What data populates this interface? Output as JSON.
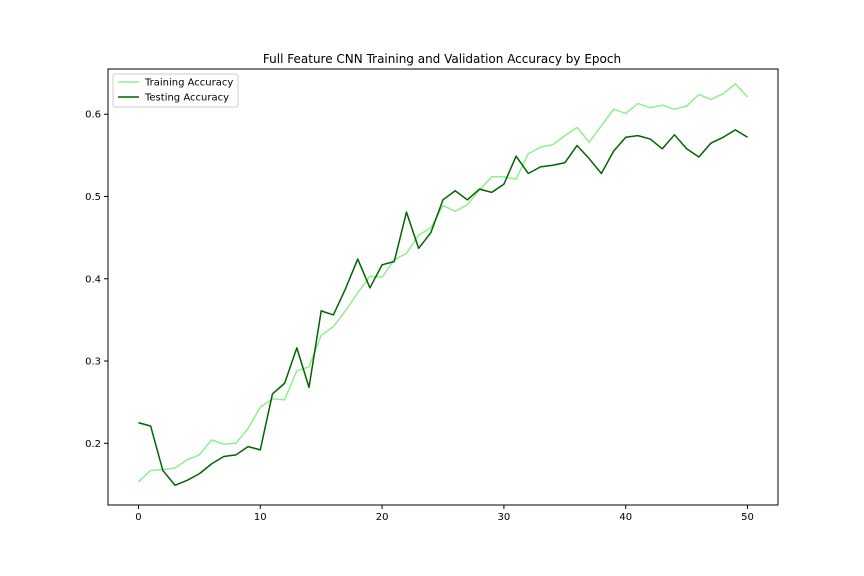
{
  "chart_data": {
    "type": "line",
    "title": "Full Feature CNN Training and Validation Accuracy by Epoch",
    "xlabel": "",
    "ylabel": "",
    "xlim": [
      -2.5,
      52.5
    ],
    "ylim": [
      0.125,
      0.655
    ],
    "xticks": [
      0,
      10,
      20,
      30,
      40,
      50
    ],
    "yticks": [
      0.2,
      0.3,
      0.4,
      0.5,
      0.6
    ],
    "grid": false,
    "legend_position": "top-left",
    "x": [
      0,
      1,
      2,
      3,
      4,
      5,
      6,
      7,
      8,
      9,
      10,
      11,
      12,
      13,
      14,
      15,
      16,
      17,
      18,
      19,
      20,
      21,
      22,
      23,
      24,
      25,
      26,
      27,
      28,
      29,
      30,
      31,
      32,
      33,
      34,
      35,
      36,
      37,
      38,
      39,
      40,
      41,
      42,
      43,
      44,
      45,
      46,
      47,
      48,
      49,
      50
    ],
    "series": [
      {
        "name": "Training Accuracy",
        "color": "#90ee90",
        "values": [
          0.153,
          0.167,
          0.168,
          0.17,
          0.18,
          0.186,
          0.204,
          0.199,
          0.2,
          0.218,
          0.244,
          0.254,
          0.253,
          0.288,
          0.293,
          0.331,
          0.342,
          0.361,
          0.383,
          0.403,
          0.402,
          0.423,
          0.431,
          0.453,
          0.462,
          0.489,
          0.482,
          0.49,
          0.508,
          0.524,
          0.524,
          0.521,
          0.552,
          0.56,
          0.563,
          0.574,
          0.584,
          0.566,
          0.586,
          0.606,
          0.601,
          0.613,
          0.608,
          0.611,
          0.606,
          0.61,
          0.624,
          0.618,
          0.625,
          0.637,
          0.621
        ]
      },
      {
        "name": "Testing Accuracy",
        "color": "#006400",
        "values": [
          0.225,
          0.221,
          0.167,
          0.149,
          0.155,
          0.163,
          0.175,
          0.184,
          0.186,
          0.196,
          0.192,
          0.26,
          0.273,
          0.316,
          0.268,
          0.361,
          0.356,
          0.388,
          0.424,
          0.389,
          0.417,
          0.421,
          0.481,
          0.437,
          0.456,
          0.496,
          0.507,
          0.496,
          0.509,
          0.505,
          0.515,
          0.549,
          0.528,
          0.536,
          0.538,
          0.541,
          0.562,
          0.546,
          0.528,
          0.555,
          0.572,
          0.574,
          0.57,
          0.558,
          0.575,
          0.558,
          0.548,
          0.565,
          0.572,
          0.581,
          0.572
        ]
      }
    ]
  }
}
